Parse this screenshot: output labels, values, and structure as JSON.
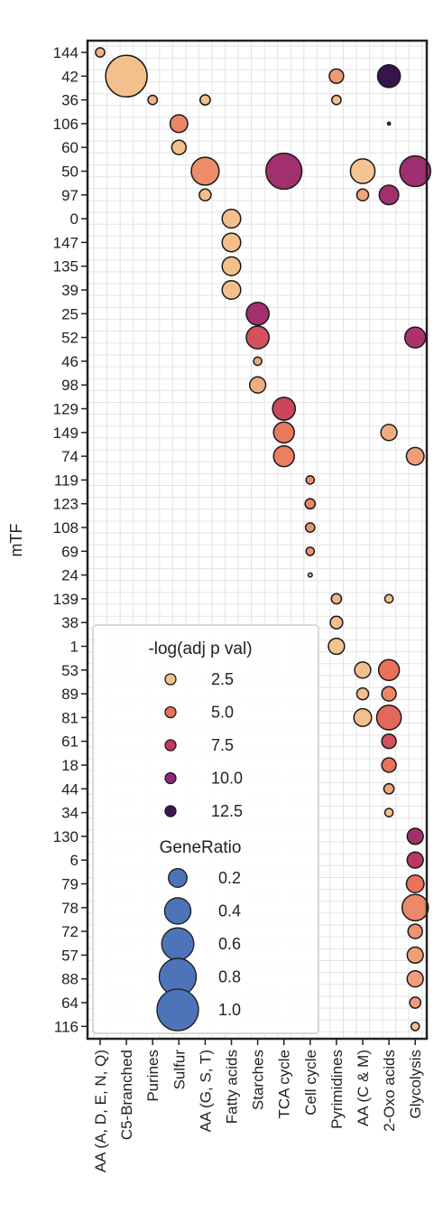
{
  "chart_data": {
    "type": "scatter",
    "ylabel": "mTF",
    "xlabel": "",
    "categories": [
      "AA (A, D, E, N, Q)",
      "C5-Branched",
      "Purines",
      "Sulfur",
      "AA (G, S, T)",
      "Fatty acids",
      "Starches",
      "TCA cycle",
      "Cell cycle",
      "Pyrimidines",
      "AA (C & M)",
      "2-Oxo acids",
      "Glycolysis"
    ],
    "mtf": [
      "144",
      "42",
      "36",
      "106",
      "60",
      "50",
      "97",
      "0",
      "147",
      "135",
      "39",
      "25",
      "52",
      "46",
      "98",
      "129",
      "149",
      "74",
      "119",
      "123",
      "108",
      "69",
      "24",
      "139",
      "38",
      "1",
      "53",
      "89",
      "81",
      "61",
      "18",
      "44",
      "34",
      "130",
      "6",
      "79",
      "78",
      "72",
      "57",
      "88",
      "64",
      "116"
    ],
    "grid": true,
    "points": [
      {
        "mtf": "144",
        "category": "AA (A, D, E, N, Q)",
        "gene_ratio": 0.05,
        "neg_log_p": 3.0
      },
      {
        "mtf": "42",
        "category": "C5-Branched",
        "gene_ratio": 1.0,
        "neg_log_p": 2.6
      },
      {
        "mtf": "42",
        "category": "Pyrimidines",
        "gene_ratio": 0.12,
        "neg_log_p": 3.8
      },
      {
        "mtf": "42",
        "category": "2-Oxo acids",
        "gene_ratio": 0.3,
        "neg_log_p": 13.0
      },
      {
        "mtf": "36",
        "category": "Purines",
        "gene_ratio": 0.05,
        "neg_log_p": 3.0
      },
      {
        "mtf": "36",
        "category": "AA (G, S, T)",
        "gene_ratio": 0.06,
        "neg_log_p": 2.6
      },
      {
        "mtf": "36",
        "category": "Pyrimidines",
        "gene_ratio": 0.05,
        "neg_log_p": 2.6
      },
      {
        "mtf": "106",
        "category": "Sulfur",
        "gene_ratio": 0.18,
        "neg_log_p": 4.4
      },
      {
        "mtf": "106",
        "category": "2-Oxo acids",
        "gene_ratio": 0.005,
        "neg_log_p": 11.0
      },
      {
        "mtf": "60",
        "category": "Sulfur",
        "gene_ratio": 0.12,
        "neg_log_p": 2.6
      },
      {
        "mtf": "50",
        "category": "AA (G, S, T)",
        "gene_ratio": 0.45,
        "neg_log_p": 4.2
      },
      {
        "mtf": "50",
        "category": "TCA cycle",
        "gene_ratio": 0.75,
        "neg_log_p": 9.0
      },
      {
        "mtf": "50",
        "category": "AA (C & M)",
        "gene_ratio": 0.35,
        "neg_log_p": 2.3
      },
      {
        "mtf": "50",
        "category": "Glycolysis",
        "gene_ratio": 0.55,
        "neg_log_p": 9.2
      },
      {
        "mtf": "97",
        "category": "AA (G, S, T)",
        "gene_ratio": 0.08,
        "neg_log_p": 2.6
      },
      {
        "mtf": "97",
        "category": "AA (C & M)",
        "gene_ratio": 0.08,
        "neg_log_p": 3.4
      },
      {
        "mtf": "97",
        "category": "2-Oxo acids",
        "gene_ratio": 0.22,
        "neg_log_p": 9.0
      },
      {
        "mtf": "0",
        "category": "Fatty acids",
        "gene_ratio": 0.2,
        "neg_log_p": 2.6
      },
      {
        "mtf": "147",
        "category": "Fatty acids",
        "gene_ratio": 0.2,
        "neg_log_p": 2.6
      },
      {
        "mtf": "135",
        "category": "Fatty acids",
        "gene_ratio": 0.2,
        "neg_log_p": 2.6
      },
      {
        "mtf": "39",
        "category": "Fatty acids",
        "gene_ratio": 0.2,
        "neg_log_p": 2.6
      },
      {
        "mtf": "25",
        "category": "Starches",
        "gene_ratio": 0.3,
        "neg_log_p": 9.0
      },
      {
        "mtf": "52",
        "category": "Starches",
        "gene_ratio": 0.3,
        "neg_log_p": 6.5
      },
      {
        "mtf": "52",
        "category": "Glycolysis",
        "gene_ratio": 0.25,
        "neg_log_p": 8.6
      },
      {
        "mtf": "46",
        "category": "Starches",
        "gene_ratio": 0.04,
        "neg_log_p": 3.4
      },
      {
        "mtf": "98",
        "category": "Starches",
        "gene_ratio": 0.15,
        "neg_log_p": 3.2
      },
      {
        "mtf": "129",
        "category": "TCA cycle",
        "gene_ratio": 0.3,
        "neg_log_p": 7.0
      },
      {
        "mtf": "149",
        "category": "TCA cycle",
        "gene_ratio": 0.25,
        "neg_log_p": 4.8
      },
      {
        "mtf": "149",
        "category": "2-Oxo acids",
        "gene_ratio": 0.15,
        "neg_log_p": 3.2
      },
      {
        "mtf": "74",
        "category": "TCA cycle",
        "gene_ratio": 0.25,
        "neg_log_p": 4.6
      },
      {
        "mtf": "74",
        "category": "Glycolysis",
        "gene_ratio": 0.18,
        "neg_log_p": 3.6
      },
      {
        "mtf": "119",
        "category": "Cell cycle",
        "gene_ratio": 0.04,
        "neg_log_p": 4.2
      },
      {
        "mtf": "123",
        "category": "Cell cycle",
        "gene_ratio": 0.06,
        "neg_log_p": 4.4
      },
      {
        "mtf": "108",
        "category": "Cell cycle",
        "gene_ratio": 0.05,
        "neg_log_p": 4.0
      },
      {
        "mtf": "69",
        "category": "Cell cycle",
        "gene_ratio": 0.04,
        "neg_log_p": 4.0
      },
      {
        "mtf": "24",
        "category": "Cell cycle",
        "gene_ratio": 0.01,
        "neg_log_p": 3.0
      },
      {
        "mtf": "139",
        "category": "Pyrimidines",
        "gene_ratio": 0.06,
        "neg_log_p": 3.0
      },
      {
        "mtf": "139",
        "category": "2-Oxo acids",
        "gene_ratio": 0.04,
        "neg_log_p": 2.6
      },
      {
        "mtf": "38",
        "category": "Pyrimidines",
        "gene_ratio": 0.09,
        "neg_log_p": 2.6
      },
      {
        "mtf": "1",
        "category": "Pyrimidines",
        "gene_ratio": 0.15,
        "neg_log_p": 2.4
      },
      {
        "mtf": "53",
        "category": "AA (C & M)",
        "gene_ratio": 0.15,
        "neg_log_p": 2.6
      },
      {
        "mtf": "53",
        "category": "2-Oxo acids",
        "gene_ratio": 0.25,
        "neg_log_p": 5.0
      },
      {
        "mtf": "89",
        "category": "AA (C & M)",
        "gene_ratio": 0.08,
        "neg_log_p": 2.6
      },
      {
        "mtf": "89",
        "category": "2-Oxo acids",
        "gene_ratio": 0.12,
        "neg_log_p": 4.4
      },
      {
        "mtf": "81",
        "category": "AA (C & M)",
        "gene_ratio": 0.18,
        "neg_log_p": 2.6
      },
      {
        "mtf": "81",
        "category": "2-Oxo acids",
        "gene_ratio": 0.35,
        "neg_log_p": 5.5
      },
      {
        "mtf": "61",
        "category": "2-Oxo acids",
        "gene_ratio": 0.12,
        "neg_log_p": 6.5
      },
      {
        "mtf": "18",
        "category": "2-Oxo acids",
        "gene_ratio": 0.12,
        "neg_log_p": 5.0
      },
      {
        "mtf": "44",
        "category": "2-Oxo acids",
        "gene_ratio": 0.06,
        "neg_log_p": 3.4
      },
      {
        "mtf": "34",
        "category": "2-Oxo acids",
        "gene_ratio": 0.04,
        "neg_log_p": 2.6
      },
      {
        "mtf": "130",
        "category": "Glycolysis",
        "gene_ratio": 0.15,
        "neg_log_p": 9.0
      },
      {
        "mtf": "6",
        "category": "Glycolysis",
        "gene_ratio": 0.15,
        "neg_log_p": 8.0
      },
      {
        "mtf": "79",
        "category": "Glycolysis",
        "gene_ratio": 0.18,
        "neg_log_p": 5.0
      },
      {
        "mtf": "78",
        "category": "Glycolysis",
        "gene_ratio": 0.4,
        "neg_log_p": 4.3
      },
      {
        "mtf": "72",
        "category": "Glycolysis",
        "gene_ratio": 0.12,
        "neg_log_p": 4.0
      },
      {
        "mtf": "57",
        "category": "Glycolysis",
        "gene_ratio": 0.15,
        "neg_log_p": 3.6
      },
      {
        "mtf": "88",
        "category": "Glycolysis",
        "gene_ratio": 0.15,
        "neg_log_p": 3.6
      },
      {
        "mtf": "64",
        "category": "Glycolysis",
        "gene_ratio": 0.07,
        "neg_log_p": 3.6
      },
      {
        "mtf": "116",
        "category": "Glycolysis",
        "gene_ratio": 0.04,
        "neg_log_p": 2.6
      }
    ],
    "color_scale": {
      "title": "-log(adj p val)",
      "ticks": [
        2.5,
        5.0,
        7.5,
        10.0,
        12.5
      ],
      "tick_labels": [
        "2.5",
        "5.0",
        "7.5",
        "10.0",
        "12.5"
      ],
      "colors": [
        "#f3c28f",
        "#e8735a",
        "#c43a5e",
        "#8d2a78",
        "#3e1657"
      ]
    },
    "size_scale": {
      "title": "GeneRatio",
      "ticks": [
        0.2,
        0.4,
        0.6,
        0.8,
        1.0
      ],
      "tick_labels": [
        "0.2",
        "0.4",
        "0.6",
        "0.8",
        "1.0"
      ],
      "legend_color": "#4d74b8"
    },
    "legend_placement": "lower-left"
  }
}
